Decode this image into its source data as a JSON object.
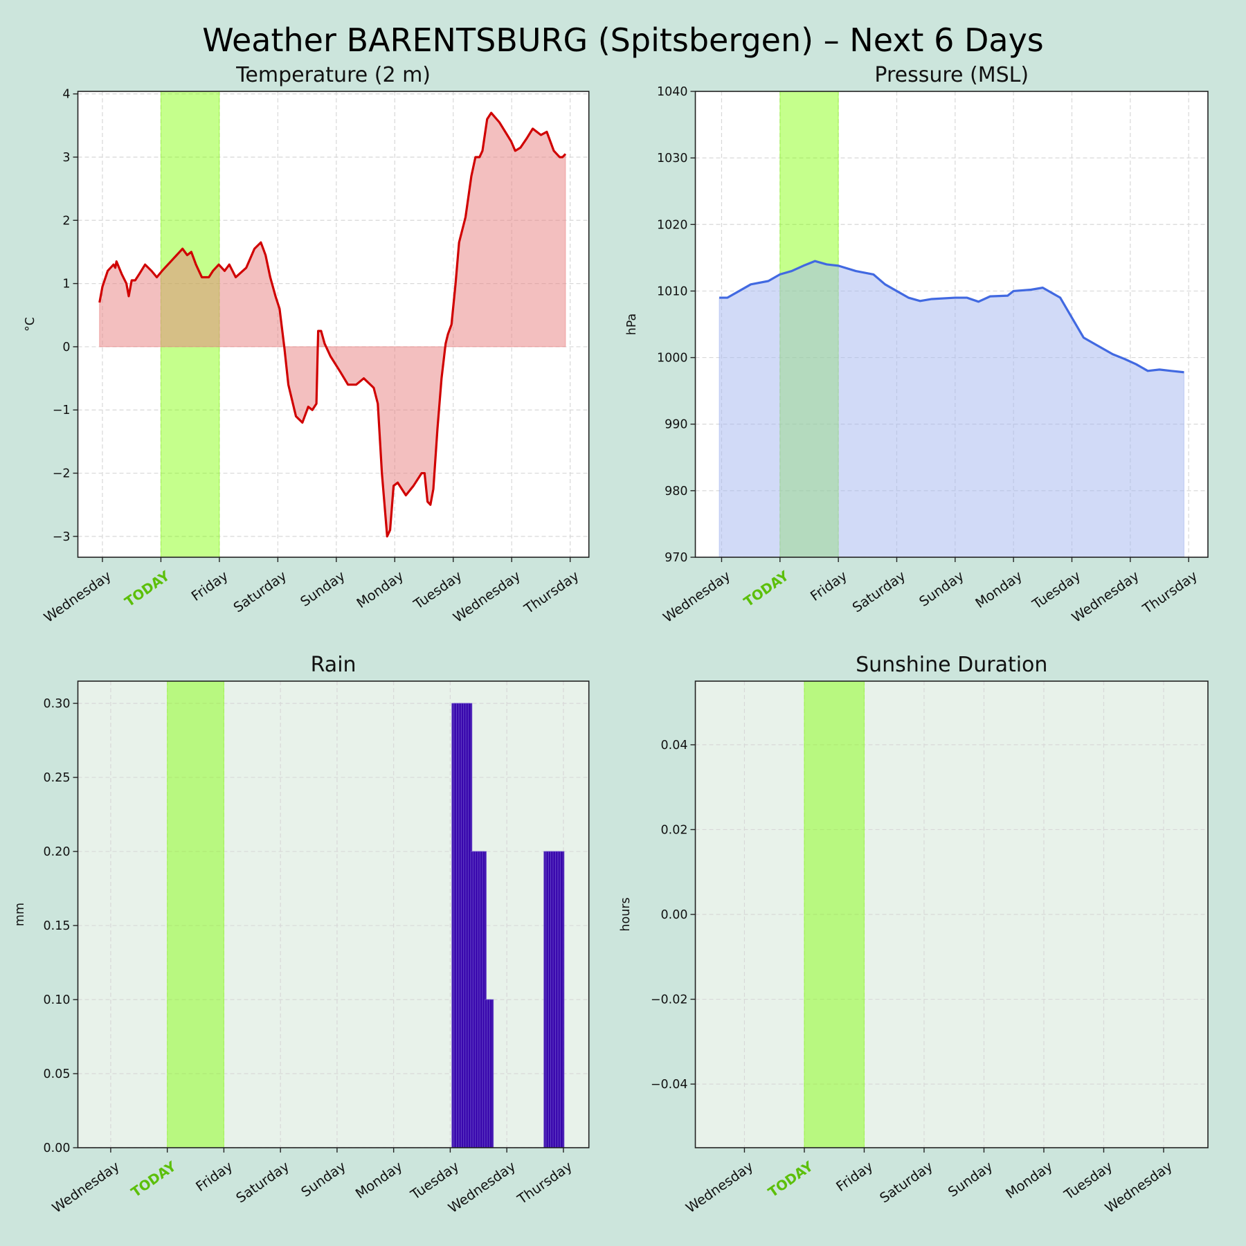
{
  "title": "Weather BARENTSBURG (Spitsbergen) – Next 6 Days",
  "colors": {
    "figure_bg": "#cce5dc",
    "today_band": "#7fff00",
    "today_label": "#5cbf0a",
    "temp_line": "#d00000",
    "temp_fill": "#e88080",
    "pressure_line": "#4169e1",
    "pressure_fill": "#a4b6f0",
    "rain_bar": "#3300aa",
    "lower_axes_bg": "#e8f2ea"
  },
  "chart_data": [
    {
      "type": "area",
      "title": "Temperature (2 m)",
      "xlabel": "",
      "ylabel": "°C",
      "xlim": [
        -0.42,
        8.32
      ],
      "ylim": [
        -3.33,
        4.04
      ],
      "grid": true,
      "today_band": [
        1,
        2
      ],
      "xticks": [
        "Wednesday",
        "TODAY",
        "Friday",
        "Saturday",
        "Sunday",
        "Monday",
        "Tuesday",
        "Wednesday",
        "Thursday"
      ],
      "yticks": [
        {
          "v": -3,
          "label": "−3"
        },
        {
          "v": -2,
          "label": "−2"
        },
        {
          "v": -1,
          "label": "−1"
        },
        {
          "v": 0,
          "label": "0"
        },
        {
          "v": 1,
          "label": "1"
        },
        {
          "v": 2,
          "label": "2"
        },
        {
          "v": 3,
          "label": "3"
        },
        {
          "v": 4,
          "label": "4"
        }
      ],
      "x": [
        -0.05,
        0,
        0.09,
        0.19,
        0.22,
        0.24,
        0.33,
        0.41,
        0.45,
        0.5,
        0.56,
        0.63,
        0.73,
        0.84,
        0.93,
        1.02,
        1.12,
        1.22,
        1.32,
        1.37,
        1.45,
        1.52,
        1.6,
        1.7,
        1.82,
        1.89,
        1.99,
        2.09,
        2.17,
        2.28,
        2.46,
        2.6,
        2.71,
        2.79,
        2.87,
        2.96,
        3.03,
        3.11,
        3.18,
        3.31,
        3.42,
        3.52,
        3.59,
        3.66,
        3.69,
        3.74,
        3.8,
        3.9,
        4.07,
        4.2,
        4.34,
        4.47,
        4.64,
        4.71,
        4.78,
        4.87,
        4.92,
        4.98,
        5.05,
        5.19,
        5.32,
        5.46,
        5.51,
        5.56,
        5.61,
        5.66,
        5.73,
        5.8,
        5.87,
        5.91,
        5.97,
        6.04,
        6.1,
        6.21,
        6.31,
        6.38,
        6.45,
        6.5,
        6.58,
        6.65,
        6.79,
        6.99,
        7.06,
        7.15,
        7.26,
        7.36,
        7.5,
        7.6,
        7.72,
        7.82,
        7.87,
        7.92
      ],
      "y": [
        0.7,
        0.95,
        1.2,
        1.3,
        1.25,
        1.35,
        1.15,
        1.0,
        0.8,
        1.05,
        1.05,
        1.15,
        1.3,
        1.2,
        1.1,
        1.2,
        1.3,
        1.4,
        1.5,
        1.55,
        1.45,
        1.5,
        1.3,
        1.1,
        1.1,
        1.2,
        1.3,
        1.2,
        1.3,
        1.1,
        1.25,
        1.55,
        1.65,
        1.45,
        1.1,
        0.8,
        0.6,
        0.0,
        -0.6,
        -1.1,
        -1.2,
        -0.95,
        -1.0,
        -0.9,
        0.25,
        0.25,
        0.05,
        -0.15,
        -0.4,
        -0.6,
        -0.6,
        -0.5,
        -0.65,
        -0.9,
        -2.0,
        -3.0,
        -2.9,
        -2.2,
        -2.15,
        -2.35,
        -2.2,
        -2.0,
        -2.0,
        -2.45,
        -2.5,
        -2.25,
        -1.3,
        -0.5,
        0.05,
        0.2,
        0.35,
        1.0,
        1.65,
        2.05,
        2.7,
        3.0,
        3.0,
        3.1,
        3.6,
        3.7,
        3.55,
        3.25,
        3.1,
        3.15,
        3.3,
        3.45,
        3.35,
        3.4,
        3.1,
        3.0,
        3.0,
        3.05
      ]
    },
    {
      "type": "area",
      "title": "Pressure (MSL)",
      "xlabel": "",
      "ylabel": "hPa",
      "xlim": [
        -0.45,
        8.33
      ],
      "ylim": [
        970,
        1040
      ],
      "grid": true,
      "today_band": [
        1,
        2
      ],
      "xticks": [
        "Wednesday",
        "TODAY",
        "Friday",
        "Saturday",
        "Sunday",
        "Monday",
        "Tuesday",
        "Wednesday",
        "Thursday"
      ],
      "yticks": [
        {
          "v": 970,
          "label": "970"
        },
        {
          "v": 980,
          "label": "980"
        },
        {
          "v": 990,
          "label": "990"
        },
        {
          "v": 1000,
          "label": "1000"
        },
        {
          "v": 1010,
          "label": "1010"
        },
        {
          "v": 1020,
          "label": "1020"
        },
        {
          "v": 1030,
          "label": "1030"
        },
        {
          "v": 1040,
          "label": "1040"
        }
      ],
      "x": [
        -0.04,
        0.1,
        0.3,
        0.5,
        0.8,
        1.0,
        1.2,
        1.4,
        1.6,
        1.8,
        2.0,
        2.3,
        2.6,
        2.8,
        3.0,
        3.2,
        3.4,
        3.6,
        4.0,
        4.2,
        4.4,
        4.6,
        4.9,
        5.0,
        5.3,
        5.5,
        5.8,
        6.0,
        6.2,
        6.4,
        6.7,
        6.9,
        7.1,
        7.3,
        7.5,
        7.7,
        7.92
      ],
      "y": [
        1009,
        1009,
        1010,
        1011,
        1011.5,
        1012.5,
        1013,
        1013.8,
        1014.5,
        1014,
        1013.8,
        1013,
        1012.5,
        1011,
        1010,
        1009,
        1008.5,
        1008.8,
        1009,
        1009,
        1008.4,
        1009.2,
        1009.3,
        1010,
        1010.2,
        1010.5,
        1009,
        1006,
        1003,
        1002,
        1000.5,
        999.8,
        999,
        998,
        998.2,
        998,
        997.8
      ]
    },
    {
      "type": "bar",
      "title": "Rain",
      "xlabel": "",
      "ylabel": "mm",
      "xlim": [
        -0.58,
        8.45
      ],
      "ylim": [
        0,
        0.315
      ],
      "grid": true,
      "today_band": [
        1,
        2
      ],
      "bar_width_days": 0.0417,
      "xticks": [
        "Wednesday",
        "TODAY",
        "Friday",
        "Saturday",
        "Sunday",
        "Monday",
        "Tuesday",
        "Wednesday",
        "Thursday"
      ],
      "yticks": [
        {
          "v": 0,
          "label": "0.00"
        },
        {
          "v": 0.05,
          "label": "0.05"
        },
        {
          "v": 0.1,
          "label": "0.10"
        },
        {
          "v": 0.15,
          "label": "0.15"
        },
        {
          "v": 0.2,
          "label": "0.20"
        },
        {
          "v": 0.25,
          "label": "0.25"
        },
        {
          "v": 0.3,
          "label": "0.30"
        }
      ],
      "x": [
        6.04,
        6.08,
        6.125,
        6.167,
        6.208,
        6.25,
        6.29,
        6.33,
        6.375,
        6.417,
        6.458,
        6.5,
        6.54,
        6.583,
        6.625,
        6.667,
        6.708,
        7.667,
        7.708,
        7.75,
        7.79,
        7.83,
        7.875,
        7.917,
        7.958
      ],
      "y": [
        0.3,
        0.3,
        0.3,
        0.3,
        0.3,
        0.3,
        0.3,
        0.3,
        0.2,
        0.2,
        0.2,
        0.2,
        0.2,
        0.2,
        0.1,
        0.1,
        0.1,
        0.2,
        0.2,
        0.2,
        0.2,
        0.2,
        0.2,
        0.2,
        0.2
      ]
    },
    {
      "type": "bar",
      "title": "Sunshine Duration",
      "xlabel": "",
      "ylabel": "hours",
      "xlim": [
        -0.82,
        7.74
      ],
      "ylim": [
        -0.055,
        0.055
      ],
      "grid": true,
      "today_band": [
        1,
        2
      ],
      "xticks": [
        "Wednesday",
        "TODAY",
        "Friday",
        "Saturday",
        "Sunday",
        "Monday",
        "Tuesday",
        "Wednesday"
      ],
      "yticks": [
        {
          "v": -0.04,
          "label": "−0.04"
        },
        {
          "v": -0.02,
          "label": "−0.02"
        },
        {
          "v": 0,
          "label": "0.00"
        },
        {
          "v": 0.02,
          "label": "0.02"
        },
        {
          "v": 0.04,
          "label": "0.04"
        }
      ],
      "x": [],
      "y": []
    }
  ]
}
